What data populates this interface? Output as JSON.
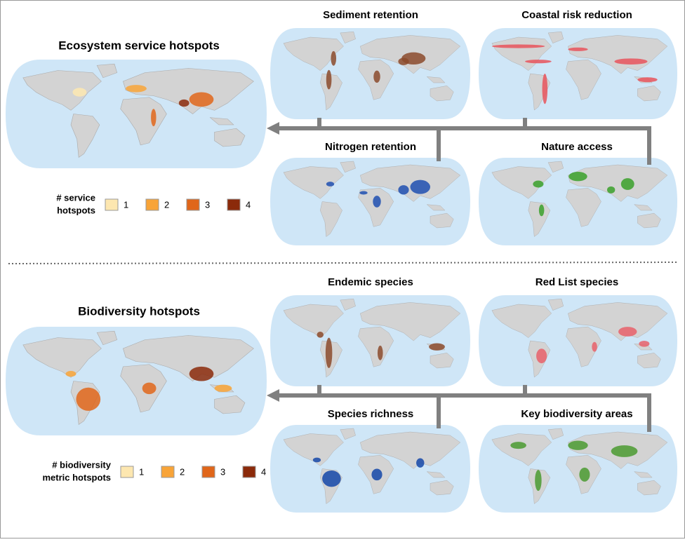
{
  "panels": [
    {
      "title": "Ecosystem service hotspots",
      "legend": {
        "title": [
          "# service",
          "hotspots"
        ],
        "items": [
          {
            "label": "1",
            "color": "#fde7b0"
          },
          {
            "label": "2",
            "color": "#f8a438"
          },
          {
            "label": "3",
            "color": "#e0661a"
          },
          {
            "label": "4",
            "color": "#8b2a0a"
          }
        ]
      },
      "maps": [
        {
          "title": "Sediment retention",
          "color": "#8b4a2b"
        },
        {
          "title": "Coastal risk reduction",
          "color": "#e8545c"
        },
        {
          "title": "Nitrogen retention",
          "color": "#1f4fb0"
        },
        {
          "title": "Nature access",
          "color": "#3aa02a"
        }
      ]
    },
    {
      "title": "Biodiversity hotspots",
      "legend": {
        "title": [
          "# biodiversity",
          "metric hotspots"
        ],
        "items": [
          {
            "label": "1",
            "color": "#fde7b0"
          },
          {
            "label": "2",
            "color": "#f8a438"
          },
          {
            "label": "3",
            "color": "#e0661a"
          },
          {
            "label": "4",
            "color": "#8b2a0a"
          }
        ]
      },
      "maps": [
        {
          "title": "Endemic species",
          "color": "#8b4a2b"
        },
        {
          "title": "Red List species",
          "color": "#e8606a"
        },
        {
          "title": "Species richness",
          "color": "#1447a8"
        },
        {
          "title": "Key biodiversity areas",
          "color": "#4a9a30"
        }
      ]
    }
  ]
}
